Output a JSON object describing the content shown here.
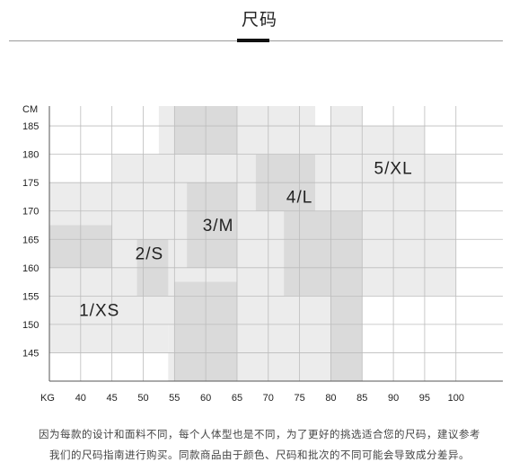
{
  "page": {
    "title": "尺码",
    "note_line1": "因为每款的设计和面料不同，每个人体型也是不同，为了更好的挑选适合您的尺码，建议参考",
    "note_line2": "我们的尺码指南进行购买。同款商品由于颜色、尺码和批次的不同可能会导致成分差异。"
  },
  "chart_data": {
    "type": "heatmap",
    "x_unit": "KG",
    "y_unit": "CM",
    "x_ticks": [
      40,
      45,
      50,
      55,
      60,
      65,
      70,
      75,
      80,
      85,
      90,
      95,
      100
    ],
    "y_ticks": [
      185,
      180,
      175,
      170,
      165,
      160,
      155,
      150,
      145
    ],
    "xlim": [
      35,
      107.5
    ],
    "ylim": [
      140,
      188.5
    ],
    "grid": true,
    "colors": {
      "light": "#ececec",
      "dark": "#dadada",
      "grid": "#bcbcbc",
      "axis": "#555555"
    },
    "regions": [
      {
        "label": "",
        "shade": "light",
        "x": [
          35,
          54
        ],
        "y": [
          145,
          175
        ]
      },
      {
        "label": "",
        "shade": "dark",
        "x": [
          35,
          45
        ],
        "y": [
          160,
          167.5
        ]
      },
      {
        "label": "",
        "shade": "light",
        "x": [
          45,
          59
        ],
        "y": [
          150,
          180
        ]
      },
      {
        "label": "",
        "shade": "dark",
        "x": [
          49,
          59
        ],
        "y": [
          155,
          165
        ]
      },
      {
        "label": "",
        "shade": "light",
        "x": [
          54,
          65
        ],
        "y": [
          140,
          180
        ]
      },
      {
        "label": "",
        "shade": "dark",
        "x": [
          55,
          65
        ],
        "y": [
          140,
          157.5
        ]
      },
      {
        "label": "",
        "shade": "dark",
        "x": [
          57,
          69
        ],
        "y": [
          160,
          175
        ]
      },
      {
        "label": "",
        "shade": "light",
        "x": [
          52.5,
          77.5
        ],
        "y": [
          177.5,
          188.5
        ]
      },
      {
        "label": "",
        "shade": "dark",
        "x": [
          55,
          65
        ],
        "y": [
          180,
          188.5
        ]
      },
      {
        "label": "",
        "shade": "light",
        "x": [
          65,
          80
        ],
        "y": [
          155,
          180
        ]
      },
      {
        "label": "",
        "shade": "dark",
        "x": [
          68,
          80
        ],
        "y": [
          160,
          180
        ]
      },
      {
        "label": "",
        "shade": "light",
        "x": [
          65,
          85
        ],
        "y": [
          140,
          170
        ]
      },
      {
        "label": "",
        "shade": "dark",
        "x": [
          80,
          85
        ],
        "y": [
          140,
          155
        ]
      },
      {
        "label": "",
        "shade": "dark",
        "x": [
          72.5,
          88
        ],
        "y": [
          155,
          170
        ]
      },
      {
        "label": "",
        "shade": "light",
        "x": [
          77.5,
          95
        ],
        "y": [
          170,
          185
        ]
      },
      {
        "label": "",
        "shade": "light",
        "x": [
          85,
          100
        ],
        "y": [
          155,
          180
        ]
      },
      {
        "label": "",
        "shade": "light",
        "x": [
          80,
          85
        ],
        "y": [
          180,
          188.5
        ]
      }
    ],
    "size_labels": [
      {
        "text": "1/XS",
        "x": 43,
        "y": 151.5
      },
      {
        "text": "2/S",
        "x": 51,
        "y": 161.5
      },
      {
        "text": "3/M",
        "x": 62,
        "y": 166.5
      },
      {
        "text": "4/L",
        "x": 75,
        "y": 171.5
      },
      {
        "text": "5/XL",
        "x": 90,
        "y": 176.5
      }
    ]
  }
}
